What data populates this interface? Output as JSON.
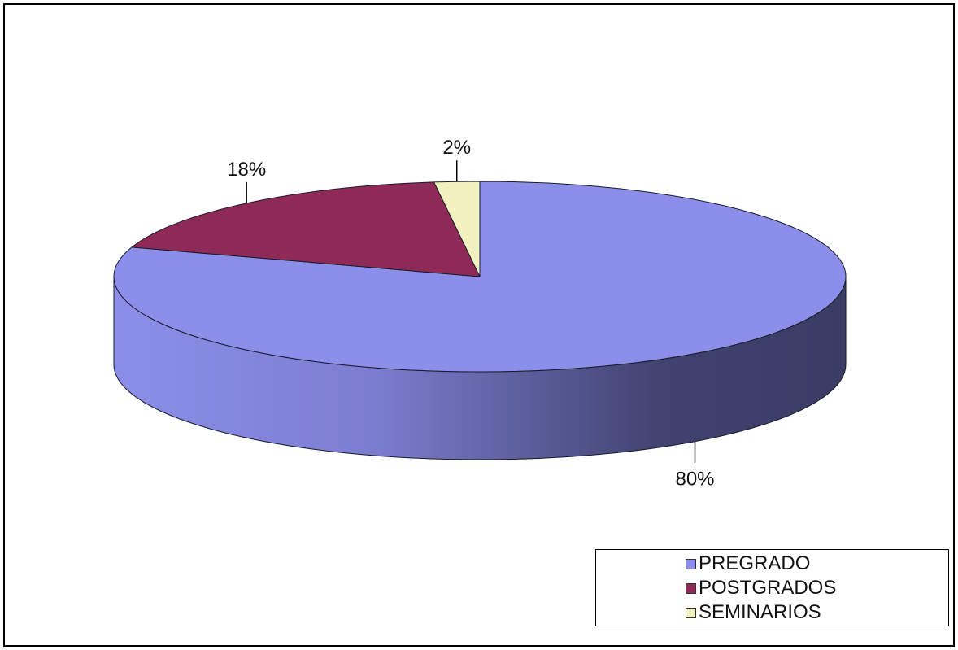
{
  "chart_data": {
    "type": "pie",
    "style": "3d",
    "title": "",
    "slices": [
      {
        "label": "PREGRADO",
        "value": 80,
        "data_label": "80%",
        "color": "#8b8fe9",
        "side_color": "#5c5f9f"
      },
      {
        "label": "POSTGRADOS",
        "value": 18,
        "data_label": "18%",
        "color": "#8e2a57",
        "side_color": "#5a1836"
      },
      {
        "label": "SEMINARIOS",
        "value": 2,
        "data_label": "2%",
        "color": "#f2f2c0",
        "side_color": "#b5b58a"
      }
    ],
    "legend": {
      "placement": "bottom-right",
      "entries": [
        "PREGRADO",
        "POSTGRADOS",
        "SEMINARIOS"
      ]
    }
  }
}
